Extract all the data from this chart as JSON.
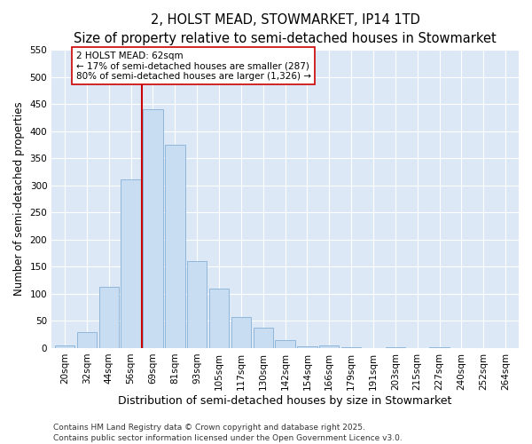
{
  "title": "2, HOLST MEAD, STOWMARKET, IP14 1TD",
  "subtitle": "Size of property relative to semi-detached houses in Stowmarket",
  "xlabel": "Distribution of semi-detached houses by size in Stowmarket",
  "ylabel": "Number of semi-detached properties",
  "categories": [
    "20sqm",
    "32sqm",
    "44sqm",
    "56sqm",
    "69sqm",
    "81sqm",
    "93sqm",
    "105sqm",
    "117sqm",
    "130sqm",
    "142sqm",
    "154sqm",
    "166sqm",
    "179sqm",
    "191sqm",
    "203sqm",
    "215sqm",
    "227sqm",
    "240sqm",
    "252sqm",
    "264sqm"
  ],
  "values": [
    5,
    30,
    113,
    312,
    440,
    375,
    160,
    110,
    57,
    38,
    15,
    3,
    5,
    1,
    0,
    2,
    0,
    1,
    0,
    0,
    0
  ],
  "bar_color": "#c9ddf2",
  "bar_edge_color": "#85afd6",
  "vline_index": 3.5,
  "property_line_label": "2 HOLST MEAD: 62sqm",
  "annotation_line1": "← 17% of semi-detached houses are smaller (287)",
  "annotation_line2": "80% of semi-detached houses are larger (1,326) →",
  "vline_color": "#cc0000",
  "box_edge_color": "#cc0000",
  "box_facecolor": "#ffffff",
  "ylim_max": 550,
  "yticks": [
    0,
    50,
    100,
    150,
    200,
    250,
    300,
    350,
    400,
    450,
    500,
    550
  ],
  "plot_bg_color": "#dce8f5",
  "fig_bg_color": "#ffffff",
  "grid_color": "#ffffff",
  "footer_line1": "Contains HM Land Registry data © Crown copyright and database right 2025.",
  "footer_line2": "Contains public sector information licensed under the Open Government Licence v3.0.",
  "title_fontsize": 10.5,
  "subtitle_fontsize": 9.5,
  "xlabel_fontsize": 9,
  "ylabel_fontsize": 8.5,
  "tick_fontsize": 7.5,
  "footer_fontsize": 6.5,
  "annot_fontsize": 7.5
}
